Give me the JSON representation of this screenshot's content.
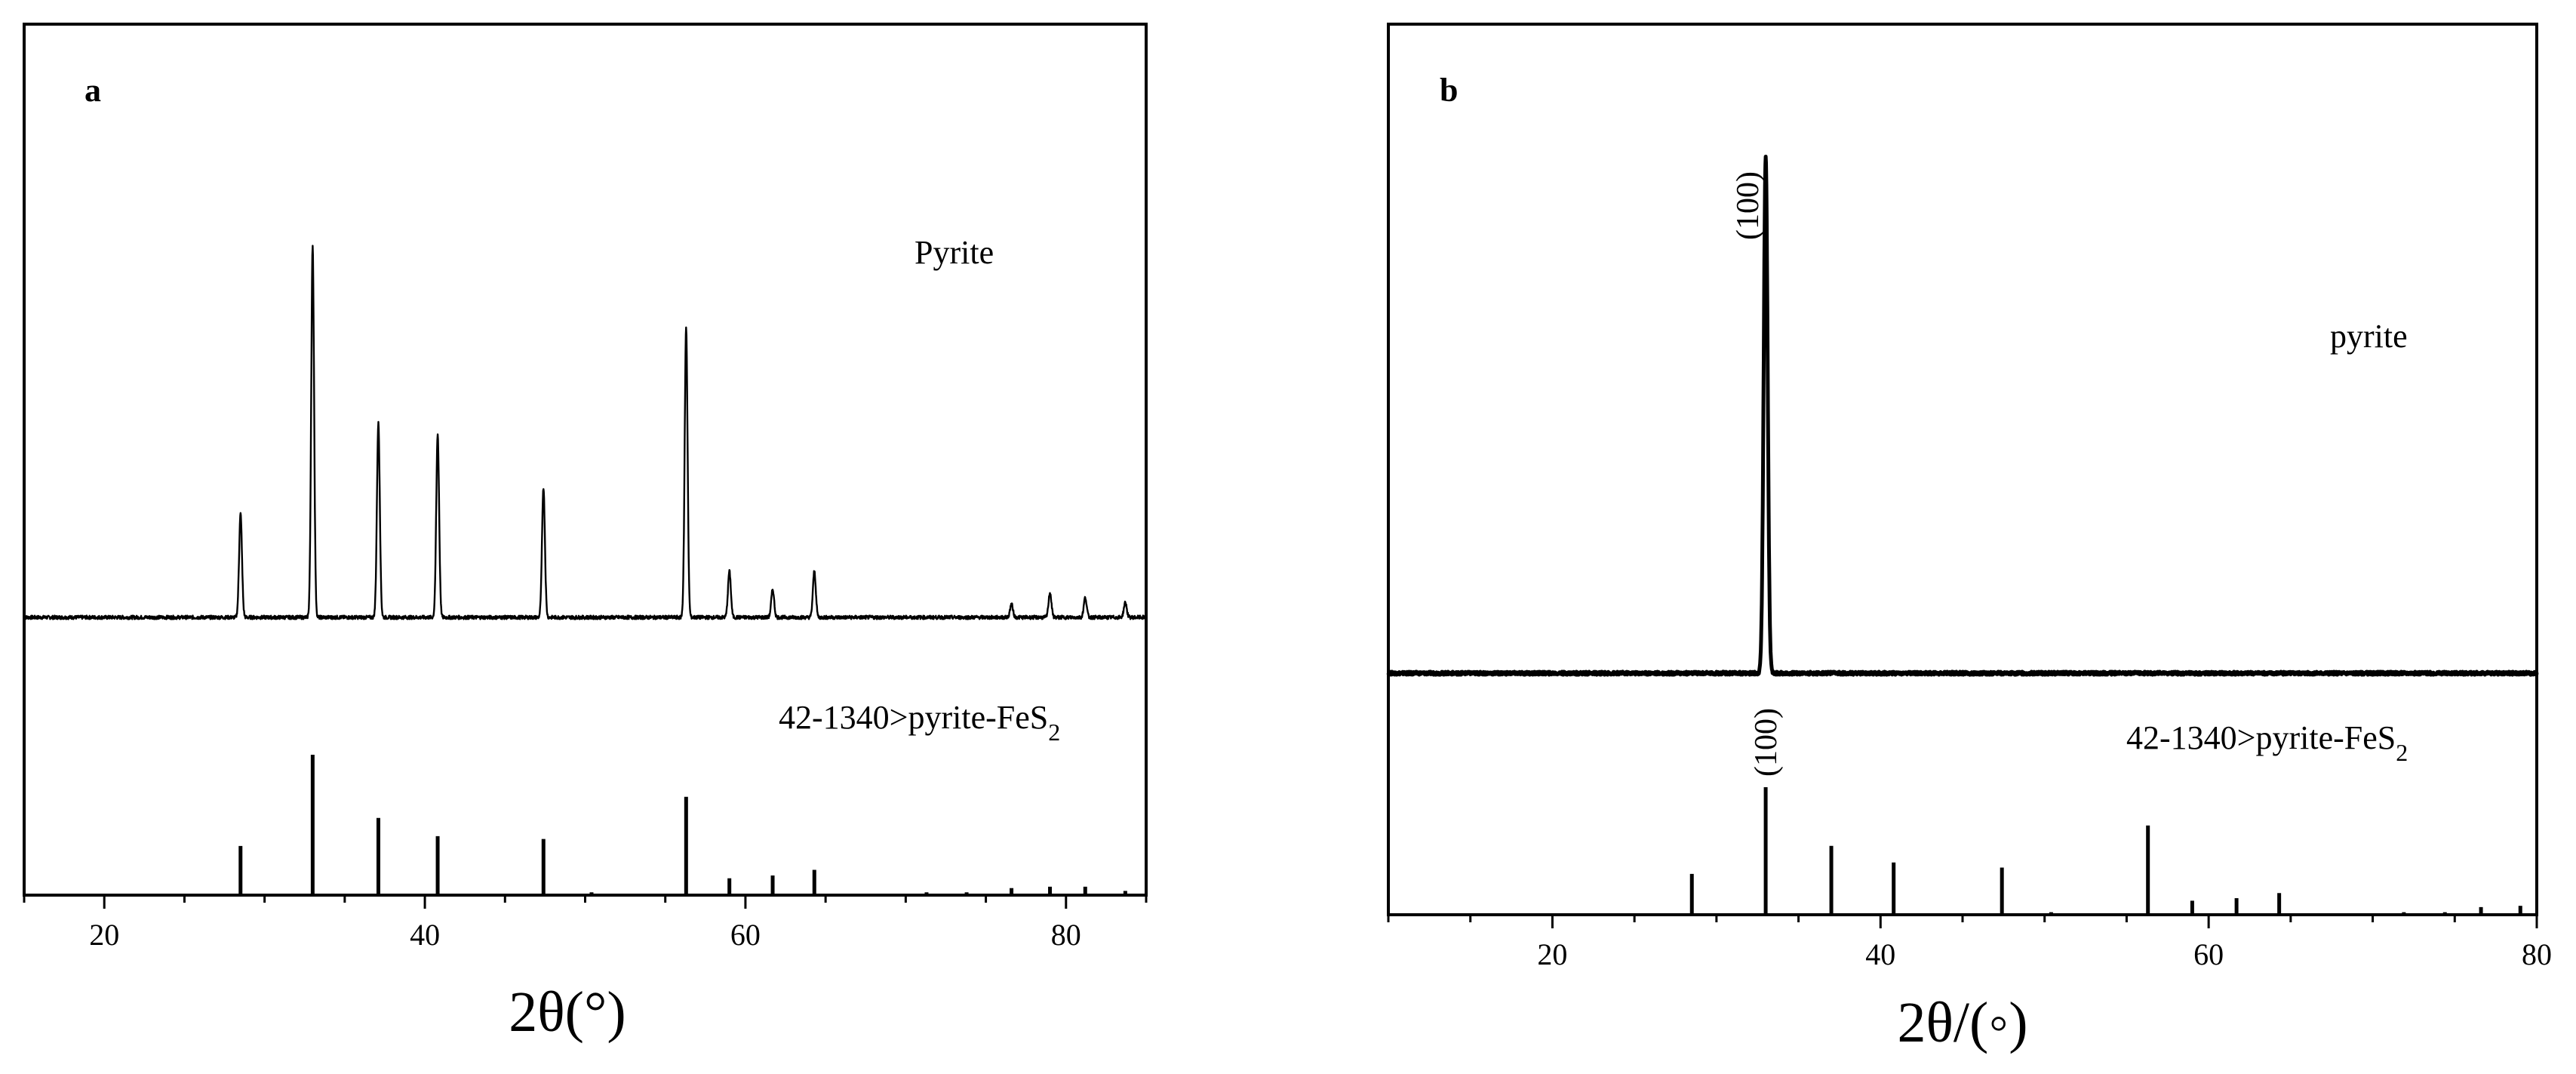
{
  "chart_data": [
    {
      "panel": "a",
      "type": "line",
      "xlabel": "2θ(°)",
      "xlim": [
        15,
        85
      ],
      "x_ticks": [
        20,
        40,
        60,
        80
      ],
      "y_ticks": false,
      "series": [
        {
          "name": "Pyrite",
          "style": "thin-line",
          "peaks": [
            {
              "x": 28.5,
              "y": 63
            },
            {
              "x": 33.0,
              "y": 225
            },
            {
              "x": 37.1,
              "y": 118
            },
            {
              "x": 40.8,
              "y": 111
            },
            {
              "x": 47.4,
              "y": 79
            },
            {
              "x": 56.3,
              "y": 176
            },
            {
              "x": 59.0,
              "y": 28
            },
            {
              "x": 61.7,
              "y": 17
            },
            {
              "x": 64.3,
              "y": 28
            },
            {
              "x": 76.6,
              "y": 8
            },
            {
              "x": 79.0,
              "y": 15
            },
            {
              "x": 81.2,
              "y": 12
            },
            {
              "x": 83.7,
              "y": 9
            }
          ]
        },
        {
          "name": "42-1340>pyrite-FeS",
          "name_subscript": "2",
          "style": "sticks",
          "peaks": [
            {
              "x": 28.5,
              "y": 35
            },
            {
              "x": 33.0,
              "y": 100
            },
            {
              "x": 37.1,
              "y": 55
            },
            {
              "x": 40.8,
              "y": 42
            },
            {
              "x": 47.4,
              "y": 40
            },
            {
              "x": 50.4,
              "y": 2
            },
            {
              "x": 56.3,
              "y": 70
            },
            {
              "x": 59.0,
              "y": 12
            },
            {
              "x": 61.7,
              "y": 14
            },
            {
              "x": 64.3,
              "y": 18
            },
            {
              "x": 71.3,
              "y": 2
            },
            {
              "x": 73.8,
              "y": 2
            },
            {
              "x": 76.6,
              "y": 5
            },
            {
              "x": 79.0,
              "y": 6
            },
            {
              "x": 81.2,
              "y": 6
            },
            {
              "x": 83.7,
              "y": 3
            }
          ]
        }
      ]
    },
    {
      "panel": "b",
      "type": "line",
      "xlabel": "2θ/(◦)",
      "xlim": [
        10,
        80
      ],
      "x_ticks": [
        20,
        40,
        60,
        80
      ],
      "y_ticks": false,
      "series": [
        {
          "name": "pyrite",
          "style": "thick-line",
          "peaks": [
            {
              "x": 33.0,
              "y": 100,
              "label": "(100)"
            }
          ]
        },
        {
          "name": "42-1340>pyrite-FeS",
          "name_subscript": "2",
          "style": "sticks",
          "peaks": [
            {
              "x": 28.5,
              "y": 32
            },
            {
              "x": 33.0,
              "y": 100,
              "label": "(100)"
            },
            {
              "x": 37.0,
              "y": 54
            },
            {
              "x": 40.8,
              "y": 41
            },
            {
              "x": 47.4,
              "y": 37
            },
            {
              "x": 50.4,
              "y": 2
            },
            {
              "x": 56.3,
              "y": 70
            },
            {
              "x": 59.0,
              "y": 11
            },
            {
              "x": 61.7,
              "y": 13
            },
            {
              "x": 64.3,
              "y": 17
            },
            {
              "x": 71.9,
              "y": 2
            },
            {
              "x": 74.4,
              "y": 2
            },
            {
              "x": 76.6,
              "y": 6
            },
            {
              "x": 79.0,
              "y": 7
            }
          ]
        }
      ]
    }
  ]
}
